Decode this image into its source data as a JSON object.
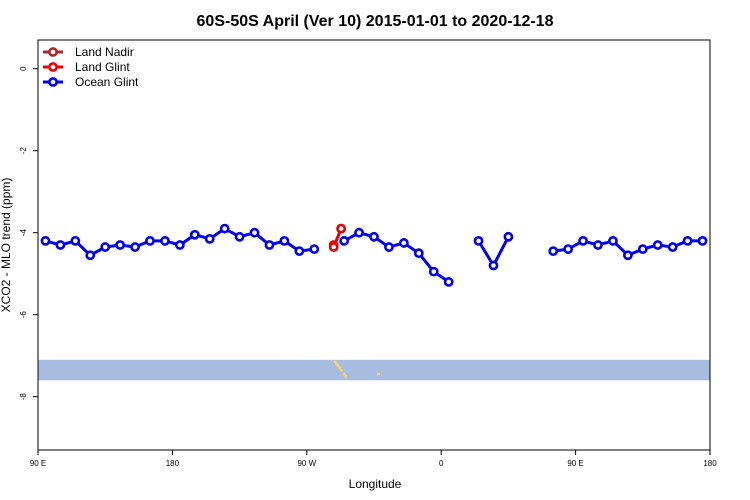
{
  "chart_data": {
    "type": "line",
    "title": "60S-50S April (Ver 10)   2015-01-01 to 2020-12-18",
    "xlabel": "Longitude",
    "ylabel": "XCO2 - MLO trend (ppm)",
    "xlim": [
      90,
      450
    ],
    "ylim": [
      -9.3,
      0.7
    ],
    "x_ticks": [
      {
        "value": 90,
        "label": "90 E"
      },
      {
        "value": 180,
        "label": "180"
      },
      {
        "value": 270,
        "label": "90 W"
      },
      {
        "value": 360,
        "label": "0"
      },
      {
        "value": 450,
        "label": "90 E"
      },
      {
        "value": 540,
        "label": "180"
      }
    ],
    "y_ticks": [
      {
        "value": 0,
        "label": "0"
      },
      {
        "value": -2,
        "label": "-2"
      },
      {
        "value": -4,
        "label": "-4"
      },
      {
        "value": -6,
        "label": "-6"
      },
      {
        "value": -8,
        "label": "-8"
      }
    ],
    "grid": false,
    "legend_position": "top-left",
    "series": [
      {
        "name": "Land Nadir",
        "color": "#a52a2a",
        "points": [
          [
            293,
            -3.9
          ]
        ]
      },
      {
        "name": "Land Glint",
        "color": "#ee0000",
        "points": [
          [
            288,
            -4.3
          ],
          [
            288,
            -4.35
          ],
          [
            293,
            -3.9
          ]
        ]
      },
      {
        "name": "Ocean Glint",
        "color": "#0000ee",
        "points": [
          [
            95,
            -4.2
          ],
          [
            105,
            -4.3
          ],
          [
            115,
            -4.2
          ],
          [
            125,
            -4.55
          ],
          [
            135,
            -4.35
          ],
          [
            145,
            -4.3
          ],
          [
            155,
            -4.35
          ],
          [
            165,
            -4.2
          ],
          [
            175,
            -4.2
          ],
          [
            185,
            -4.3
          ],
          [
            195,
            -4.05
          ],
          [
            205,
            -4.15
          ],
          [
            215,
            -3.9
          ],
          [
            225,
            -4.1
          ],
          [
            235,
            -4.0
          ],
          [
            245,
            -4.3
          ],
          [
            255,
            -4.2
          ],
          [
            265,
            -4.45
          ],
          [
            275,
            -4.4
          ],
          null,
          [
            295,
            -4.2
          ],
          [
            305,
            -4.0
          ],
          [
            315,
            -4.1
          ],
          [
            325,
            -4.35
          ],
          [
            335,
            -4.25
          ],
          [
            345,
            -4.5
          ],
          [
            355,
            -4.95
          ],
          [
            365,
            -5.2
          ],
          null,
          [
            385,
            -4.2
          ],
          [
            395,
            -4.8
          ],
          [
            405,
            -4.1
          ],
          null,
          [
            435,
            -4.45
          ],
          [
            445,
            -4.4
          ],
          [
            455,
            -4.2
          ],
          [
            465,
            -4.3
          ],
          [
            475,
            -4.2
          ],
          [
            485,
            -4.55
          ],
          [
            495,
            -4.4
          ],
          [
            505,
            -4.3
          ],
          [
            515,
            -4.35
          ],
          [
            525,
            -4.2
          ],
          [
            535,
            -4.2
          ]
        ]
      }
    ]
  },
  "map_band": {
    "y_top": -7.1,
    "y_bottom": -7.6,
    "ocean_color": "#a7bddf",
    "land_color": "#f5d07a"
  }
}
